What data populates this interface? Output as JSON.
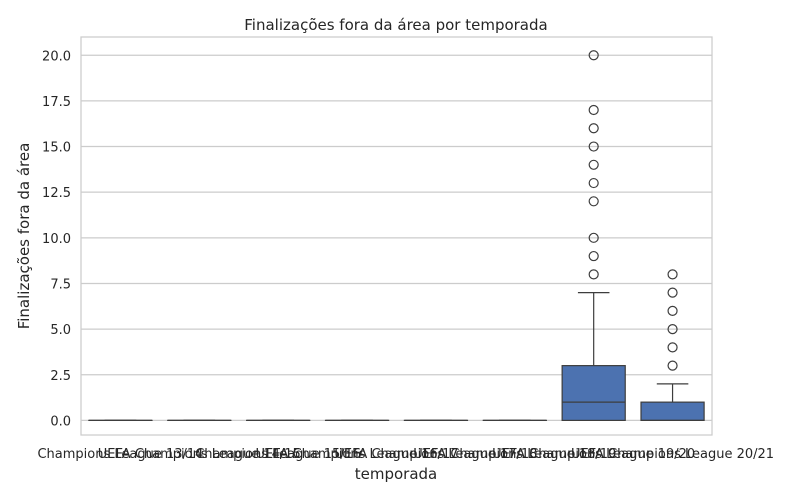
{
  "chart_data": {
    "type": "box",
    "title": "Finalizações fora da área por temporada",
    "xlabel": "temporada",
    "ylabel": "Finalizações fora da área",
    "ylim": [
      -0.8,
      21.0
    ],
    "yticks": [
      0.0,
      2.5,
      5.0,
      7.5,
      10.0,
      12.5,
      15.0,
      17.5,
      20.0
    ],
    "ytick_labels": [
      "0.0",
      "2.5",
      "5.0",
      "7.5",
      "10.0",
      "12.5",
      "15.0",
      "17.5",
      "20.0"
    ],
    "grid": true,
    "box_color": "#4c72b0",
    "categories": [
      "Champions League 13/14",
      "UEFA Champions League 14/15",
      "Champions League 15/16",
      "UEFA Champions League 16/17",
      "UEFA Champions League 17/18",
      "UEFA Champions League 18/19",
      "UEFA Champions League 19/20",
      "UEFA Champions League 20/21"
    ],
    "boxes": [
      {
        "whislo": 0,
        "q1": 0,
        "med": 0,
        "q3": 0,
        "whishi": 0,
        "fliers": []
      },
      {
        "whislo": 0,
        "q1": 0,
        "med": 0,
        "q3": 0,
        "whishi": 0,
        "fliers": []
      },
      {
        "whislo": 0,
        "q1": 0,
        "med": 0,
        "q3": 0,
        "whishi": 0,
        "fliers": []
      },
      {
        "whislo": 0,
        "q1": 0,
        "med": 0,
        "q3": 0,
        "whishi": 0,
        "fliers": []
      },
      {
        "whislo": 0,
        "q1": 0,
        "med": 0,
        "q3": 0,
        "whishi": 0,
        "fliers": []
      },
      {
        "whislo": 0,
        "q1": 0,
        "med": 0,
        "q3": 0,
        "whishi": 0,
        "fliers": []
      },
      {
        "whislo": 0,
        "q1": 0,
        "med": 1,
        "q3": 3,
        "whishi": 7,
        "fliers": [
          8,
          9,
          10,
          12,
          13,
          14,
          15,
          16,
          17,
          20
        ]
      },
      {
        "whislo": 0,
        "q1": 0,
        "med": 0,
        "q3": 1,
        "whishi": 2,
        "fliers": [
          3,
          4,
          5,
          6,
          7,
          8
        ]
      }
    ]
  }
}
